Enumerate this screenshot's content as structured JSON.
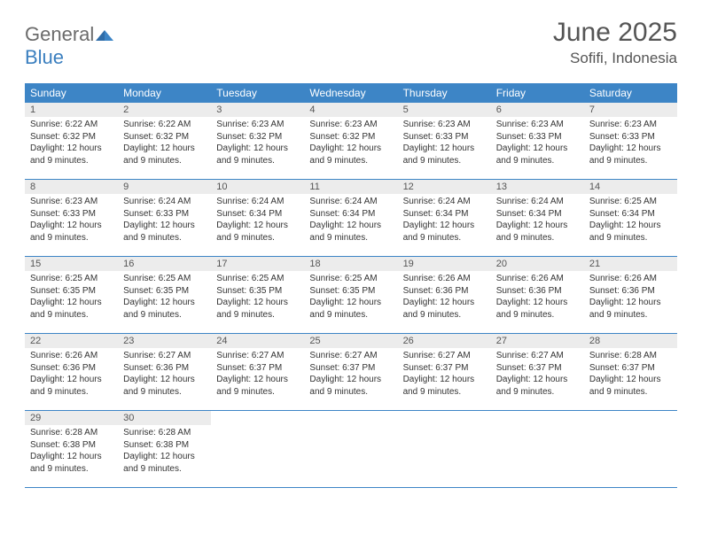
{
  "logo": {
    "word1": "General",
    "word2": "Blue"
  },
  "title": "June 2025",
  "location": "Sofifi, Indonesia",
  "colors": {
    "header_bg": "#3d85c6",
    "header_text": "#ffffff",
    "daynum_bg": "#ececec",
    "border": "#3d85c6",
    "text": "#333333",
    "logo_gray": "#6b6b6b",
    "logo_blue": "#3b7fbf"
  },
  "day_names": [
    "Sunday",
    "Monday",
    "Tuesday",
    "Wednesday",
    "Thursday",
    "Friday",
    "Saturday"
  ],
  "weeks": [
    [
      {
        "n": "1",
        "sr": "Sunrise: 6:22 AM",
        "ss": "Sunset: 6:32 PM",
        "d1": "Daylight: 12 hours",
        "d2": "and 9 minutes."
      },
      {
        "n": "2",
        "sr": "Sunrise: 6:22 AM",
        "ss": "Sunset: 6:32 PM",
        "d1": "Daylight: 12 hours",
        "d2": "and 9 minutes."
      },
      {
        "n": "3",
        "sr": "Sunrise: 6:23 AM",
        "ss": "Sunset: 6:32 PM",
        "d1": "Daylight: 12 hours",
        "d2": "and 9 minutes."
      },
      {
        "n": "4",
        "sr": "Sunrise: 6:23 AM",
        "ss": "Sunset: 6:32 PM",
        "d1": "Daylight: 12 hours",
        "d2": "and 9 minutes."
      },
      {
        "n": "5",
        "sr": "Sunrise: 6:23 AM",
        "ss": "Sunset: 6:33 PM",
        "d1": "Daylight: 12 hours",
        "d2": "and 9 minutes."
      },
      {
        "n": "6",
        "sr": "Sunrise: 6:23 AM",
        "ss": "Sunset: 6:33 PM",
        "d1": "Daylight: 12 hours",
        "d2": "and 9 minutes."
      },
      {
        "n": "7",
        "sr": "Sunrise: 6:23 AM",
        "ss": "Sunset: 6:33 PM",
        "d1": "Daylight: 12 hours",
        "d2": "and 9 minutes."
      }
    ],
    [
      {
        "n": "8",
        "sr": "Sunrise: 6:23 AM",
        "ss": "Sunset: 6:33 PM",
        "d1": "Daylight: 12 hours",
        "d2": "and 9 minutes."
      },
      {
        "n": "9",
        "sr": "Sunrise: 6:24 AM",
        "ss": "Sunset: 6:33 PM",
        "d1": "Daylight: 12 hours",
        "d2": "and 9 minutes."
      },
      {
        "n": "10",
        "sr": "Sunrise: 6:24 AM",
        "ss": "Sunset: 6:34 PM",
        "d1": "Daylight: 12 hours",
        "d2": "and 9 minutes."
      },
      {
        "n": "11",
        "sr": "Sunrise: 6:24 AM",
        "ss": "Sunset: 6:34 PM",
        "d1": "Daylight: 12 hours",
        "d2": "and 9 minutes."
      },
      {
        "n": "12",
        "sr": "Sunrise: 6:24 AM",
        "ss": "Sunset: 6:34 PM",
        "d1": "Daylight: 12 hours",
        "d2": "and 9 minutes."
      },
      {
        "n": "13",
        "sr": "Sunrise: 6:24 AM",
        "ss": "Sunset: 6:34 PM",
        "d1": "Daylight: 12 hours",
        "d2": "and 9 minutes."
      },
      {
        "n": "14",
        "sr": "Sunrise: 6:25 AM",
        "ss": "Sunset: 6:34 PM",
        "d1": "Daylight: 12 hours",
        "d2": "and 9 minutes."
      }
    ],
    [
      {
        "n": "15",
        "sr": "Sunrise: 6:25 AM",
        "ss": "Sunset: 6:35 PM",
        "d1": "Daylight: 12 hours",
        "d2": "and 9 minutes."
      },
      {
        "n": "16",
        "sr": "Sunrise: 6:25 AM",
        "ss": "Sunset: 6:35 PM",
        "d1": "Daylight: 12 hours",
        "d2": "and 9 minutes."
      },
      {
        "n": "17",
        "sr": "Sunrise: 6:25 AM",
        "ss": "Sunset: 6:35 PM",
        "d1": "Daylight: 12 hours",
        "d2": "and 9 minutes."
      },
      {
        "n": "18",
        "sr": "Sunrise: 6:25 AM",
        "ss": "Sunset: 6:35 PM",
        "d1": "Daylight: 12 hours",
        "d2": "and 9 minutes."
      },
      {
        "n": "19",
        "sr": "Sunrise: 6:26 AM",
        "ss": "Sunset: 6:36 PM",
        "d1": "Daylight: 12 hours",
        "d2": "and 9 minutes."
      },
      {
        "n": "20",
        "sr": "Sunrise: 6:26 AM",
        "ss": "Sunset: 6:36 PM",
        "d1": "Daylight: 12 hours",
        "d2": "and 9 minutes."
      },
      {
        "n": "21",
        "sr": "Sunrise: 6:26 AM",
        "ss": "Sunset: 6:36 PM",
        "d1": "Daylight: 12 hours",
        "d2": "and 9 minutes."
      }
    ],
    [
      {
        "n": "22",
        "sr": "Sunrise: 6:26 AM",
        "ss": "Sunset: 6:36 PM",
        "d1": "Daylight: 12 hours",
        "d2": "and 9 minutes."
      },
      {
        "n": "23",
        "sr": "Sunrise: 6:27 AM",
        "ss": "Sunset: 6:36 PM",
        "d1": "Daylight: 12 hours",
        "d2": "and 9 minutes."
      },
      {
        "n": "24",
        "sr": "Sunrise: 6:27 AM",
        "ss": "Sunset: 6:37 PM",
        "d1": "Daylight: 12 hours",
        "d2": "and 9 minutes."
      },
      {
        "n": "25",
        "sr": "Sunrise: 6:27 AM",
        "ss": "Sunset: 6:37 PM",
        "d1": "Daylight: 12 hours",
        "d2": "and 9 minutes."
      },
      {
        "n": "26",
        "sr": "Sunrise: 6:27 AM",
        "ss": "Sunset: 6:37 PM",
        "d1": "Daylight: 12 hours",
        "d2": "and 9 minutes."
      },
      {
        "n": "27",
        "sr": "Sunrise: 6:27 AM",
        "ss": "Sunset: 6:37 PM",
        "d1": "Daylight: 12 hours",
        "d2": "and 9 minutes."
      },
      {
        "n": "28",
        "sr": "Sunrise: 6:28 AM",
        "ss": "Sunset: 6:37 PM",
        "d1": "Daylight: 12 hours",
        "d2": "and 9 minutes."
      }
    ],
    [
      {
        "n": "29",
        "sr": "Sunrise: 6:28 AM",
        "ss": "Sunset: 6:38 PM",
        "d1": "Daylight: 12 hours",
        "d2": "and 9 minutes."
      },
      {
        "n": "30",
        "sr": "Sunrise: 6:28 AM",
        "ss": "Sunset: 6:38 PM",
        "d1": "Daylight: 12 hours",
        "d2": "and 9 minutes."
      },
      null,
      null,
      null,
      null,
      null
    ]
  ]
}
